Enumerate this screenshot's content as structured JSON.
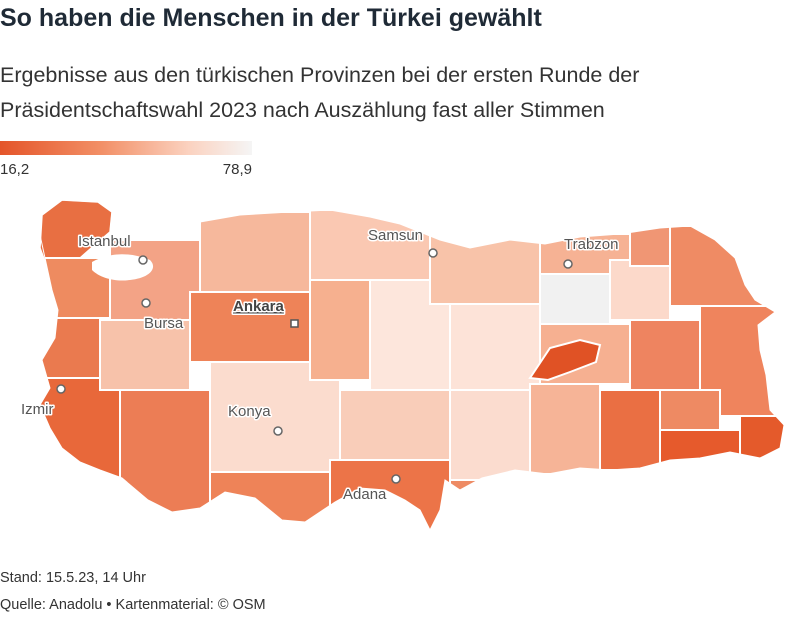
{
  "title": "So haben die Menschen in der Türkei gewählt",
  "subtitle": "Ergebnisse aus den türkischen Provinzen bei der ersten Runde der Präsidentschaftswahl 2023 nach Auszählung fast aller Stimmen",
  "legend": {
    "min": "16,2",
    "max": "78,9",
    "min_color": "#e4552a",
    "max_color": "#f5f5f5"
  },
  "cities": {
    "istanbul": "Istanbul",
    "samsun": "Samsun",
    "trabzon": "Trabzon",
    "ankara": "Ankara",
    "bursa": "Bursa",
    "izmir": "Izmir",
    "konya": "Konya",
    "adana": "Adana"
  },
  "footer": {
    "stand": "Stand: 15.5.23, 14 Uhr",
    "source": "Quelle: Anadolu • Kartenmaterial: © OSM"
  }
}
